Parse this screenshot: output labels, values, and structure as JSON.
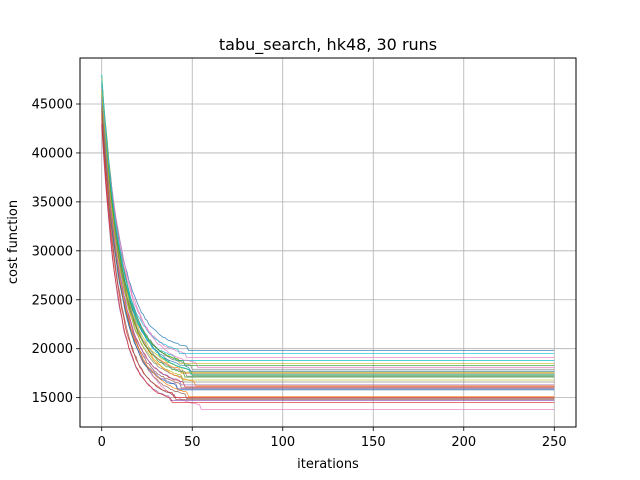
{
  "chart_data": {
    "type": "line",
    "title": "tabu_search, hk48, 30 runs",
    "xlabel": "iterations",
    "ylabel": "cost function",
    "xlim": [
      -12,
      262
    ],
    "ylim": [
      12000,
      49700
    ],
    "x_ticks": [
      0,
      50,
      100,
      150,
      200,
      250
    ],
    "y_ticks": [
      15000,
      20000,
      25000,
      30000,
      35000,
      40000,
      45000
    ],
    "grid": true,
    "legend": "none",
    "runs": 30,
    "iterations": 250,
    "series": [
      {
        "color": "#1f77b4",
        "start": 46800,
        "final": 19800,
        "converge_iter": 48
      },
      {
        "color": "#ff7f0e",
        "start": 45900,
        "final": 17500,
        "converge_iter": 44
      },
      {
        "color": "#2ca02c",
        "start": 47900,
        "final": 17300,
        "converge_iter": 50
      },
      {
        "color": "#d62728",
        "start": 44800,
        "final": 16100,
        "converge_iter": 46
      },
      {
        "color": "#9467bd",
        "start": 45500,
        "final": 15900,
        "converge_iter": 42
      },
      {
        "color": "#8c564b",
        "start": 44000,
        "final": 14900,
        "converge_iter": 47
      },
      {
        "color": "#e377c2",
        "start": 43500,
        "final": 13800,
        "converge_iter": 55
      },
      {
        "color": "#7f7f7f",
        "start": 46500,
        "final": 16600,
        "converge_iter": 45
      },
      {
        "color": "#bcbd22",
        "start": 47200,
        "final": 18500,
        "converge_iter": 43
      },
      {
        "color": "#17becf",
        "start": 48000,
        "final": 18800,
        "converge_iter": 41
      },
      {
        "color": "#1f77b4",
        "start": 45200,
        "final": 17700,
        "converge_iter": 49
      },
      {
        "color": "#ff7f0e",
        "start": 44600,
        "final": 16200,
        "converge_iter": 52
      },
      {
        "color": "#2ca02c",
        "start": 46100,
        "final": 17100,
        "converge_iter": 46
      },
      {
        "color": "#d62728",
        "start": 43900,
        "final": 15000,
        "converge_iter": 40
      },
      {
        "color": "#9467bd",
        "start": 42800,
        "final": 14700,
        "converge_iter": 38
      },
      {
        "color": "#8c564b",
        "start": 44300,
        "final": 16000,
        "converge_iter": 44
      },
      {
        "color": "#e377c2",
        "start": 46900,
        "final": 19100,
        "converge_iter": 47
      },
      {
        "color": "#7f7f7f",
        "start": 45700,
        "final": 17900,
        "converge_iter": 50
      },
      {
        "color": "#bcbd22",
        "start": 47600,
        "final": 17600,
        "converge_iter": 45
      },
      {
        "color": "#17becf",
        "start": 47000,
        "final": 19500,
        "converge_iter": 43
      },
      {
        "color": "#1f77b4",
        "start": 45000,
        "final": 15800,
        "converge_iter": 42
      },
      {
        "color": "#ff7f0e",
        "start": 44100,
        "final": 15100,
        "converge_iter": 48
      },
      {
        "color": "#2ca02c",
        "start": 46300,
        "final": 18300,
        "converge_iter": 46
      },
      {
        "color": "#d62728",
        "start": 43000,
        "final": 14500,
        "converge_iter": 39
      },
      {
        "color": "#9467bd",
        "start": 45400,
        "final": 16300,
        "converge_iter": 44
      },
      {
        "color": "#8c564b",
        "start": 44700,
        "final": 14800,
        "converge_iter": 41
      },
      {
        "color": "#e377c2",
        "start": 46600,
        "final": 18100,
        "converge_iter": 53
      },
      {
        "color": "#7f7f7f",
        "start": 45800,
        "final": 17200,
        "converge_iter": 47
      },
      {
        "color": "#bcbd22",
        "start": 46400,
        "final": 16800,
        "converge_iter": 45
      },
      {
        "color": "#17becf",
        "start": 47400,
        "final": 17400,
        "converge_iter": 49
      }
    ]
  }
}
